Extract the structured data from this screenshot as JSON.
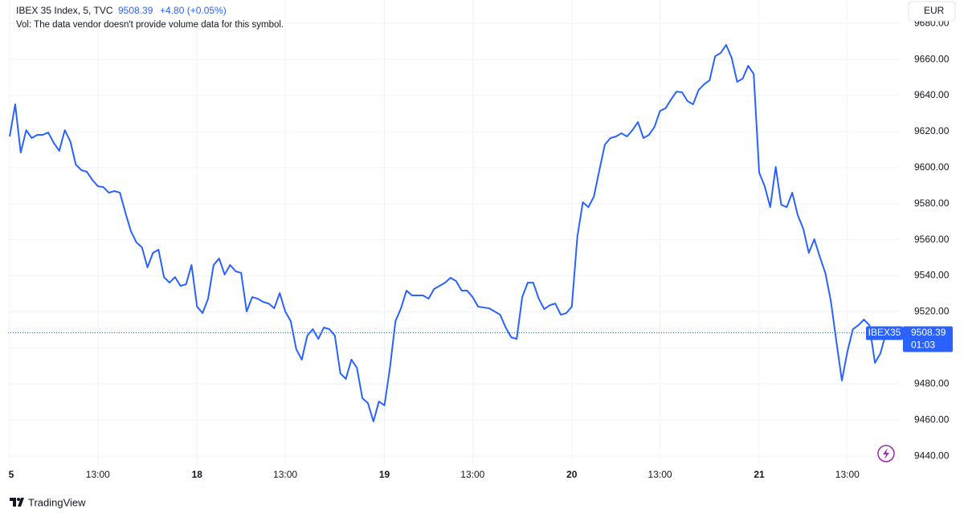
{
  "chart_data": {
    "type": "line",
    "title": "IBEX 35 Index, 5, TVC",
    "last_price": 9508.39,
    "change": "+4.80 (+0.05%)",
    "annotation": "Vol: The data vendor doesn't provide volume data for this symbol.",
    "currency": "EUR",
    "countdown": "01:03",
    "brand": "TradingView",
    "grid": true,
    "x": [
      0,
      3,
      6,
      9,
      12,
      15,
      18,
      21,
      24,
      27,
      30,
      33,
      36,
      39,
      42,
      45,
      48,
      51,
      54,
      57,
      60,
      63,
      66,
      69,
      72,
      75,
      78,
      81,
      84,
      87,
      90,
      93,
      96,
      99,
      102,
      105,
      108,
      111,
      114,
      117,
      120,
      123,
      126,
      129,
      132,
      135,
      138,
      141,
      144,
      147,
      150,
      153,
      156,
      159,
      162,
      165,
      168,
      171,
      174,
      177,
      180,
      183,
      186,
      189,
      192,
      195,
      198,
      201,
      204,
      207,
      210,
      213,
      216,
      219,
      222,
      225,
      228,
      231,
      234,
      237,
      240,
      243,
      246,
      249,
      252,
      255,
      258,
      261,
      264,
      267,
      270,
      273,
      276,
      279,
      282,
      285,
      288,
      291,
      294,
      297,
      300,
      303,
      306,
      309,
      312,
      315,
      318,
      321,
      324,
      327,
      330,
      333,
      336,
      339,
      342,
      345,
      348,
      351,
      354,
      357,
      360,
      363,
      366,
      369,
      372,
      375,
      378,
      381,
      384,
      387,
      390,
      393,
      396,
      399,
      402,
      405,
      408,
      411,
      414,
      417,
      420,
      423,
      426,
      429,
      432,
      435,
      438,
      441,
      444,
      447,
      450,
      453,
      456,
      459,
      462,
      465,
      468,
      471,
      474,
      477
    ],
    "series": [
      {
        "name": "IBEX35",
        "color": "#2962ff",
        "values": [
          9617.3,
          9635.1,
          9608.4,
          9620.8,
          9616.4,
          9618.2,
          9618.2,
          9619.5,
          9613.7,
          9609.3,
          9620.8,
          9614.6,
          9601.7,
          9598.6,
          9597.7,
          9593.2,
          9589.7,
          9589.2,
          9586.1,
          9587.0,
          9586.1,
          9575.0,
          9564.7,
          9558.5,
          9555.8,
          9544.7,
          9552.7,
          9554.5,
          9539.3,
          9536.2,
          9539.3,
          9534.4,
          9535.3,
          9546.0,
          9522.9,
          9519.3,
          9527.3,
          9546.0,
          9549.6,
          9540.7,
          9546.0,
          9542.5,
          9541.6,
          9520.2,
          9528.2,
          9527.3,
          9525.5,
          9524.6,
          9522.0,
          9530.4,
          9520.2,
          9514.8,
          9499.3,
          9493.5,
          9506.8,
          9510.4,
          9505.0,
          9511.3,
          9510.4,
          9506.8,
          9485.9,
          9482.8,
          9493.5,
          9489.0,
          9472.1,
          9469.4,
          9459.2,
          9470.3,
          9468.1,
          9489.0,
          9514.8,
          9522.0,
          9531.8,
          9529.1,
          9529.1,
          9529.1,
          9527.3,
          9532.7,
          9534.4,
          9536.2,
          9538.9,
          9537.1,
          9531.8,
          9531.8,
          9528.2,
          9522.9,
          9522.4,
          9522.0,
          9520.2,
          9518.4,
          9511.3,
          9505.9,
          9505.0,
          9528.2,
          9536.2,
          9536.2,
          9527.3,
          9521.5,
          9523.7,
          9524.6,
          9518.4,
          9519.3,
          9522.9,
          9561.6,
          9580.8,
          9578.1,
          9583.9,
          9598.6,
          9612.8,
          9616.4,
          9617.3,
          9619.1,
          9617.3,
          9620.8,
          9625.3,
          9616.4,
          9618.2,
          9622.6,
          9631.5,
          9632.9,
          9637.8,
          9642.2,
          9641.8,
          9636.9,
          9635.1,
          9643.1,
          9646.2,
          9648.5,
          9661.8,
          9663.6,
          9668.1,
          9660.9,
          9647.6,
          9649.4,
          9656.5,
          9652.0,
          9597.2,
          9589.7,
          9578.1,
          9600.4,
          9579.4,
          9578.1,
          9586.1,
          9573.6,
          9566.1,
          9552.7,
          9560.3,
          9550.5,
          9541.6,
          9526.0,
          9503.7,
          9481.9,
          9497.9,
          9510.4,
          9512.6,
          9515.7,
          9512.6,
          9491.7,
          9497.0,
          9508.39
        ]
      }
    ],
    "xlim": [
      -0.9,
      484.5
    ],
    "xticks": [
      {
        "value": 0,
        "label": "5"
      },
      {
        "value": 48,
        "label": "13:00"
      },
      {
        "value": 102,
        "label": "18"
      },
      {
        "value": 150,
        "label": "13:00"
      },
      {
        "value": 204,
        "label": "19"
      },
      {
        "value": 252,
        "label": "13:00"
      },
      {
        "value": 306,
        "label": "20"
      },
      {
        "value": 354,
        "label": "13:00"
      },
      {
        "value": 408,
        "label": "21"
      },
      {
        "value": 456,
        "label": "13:00"
      }
    ],
    "ylim": [
      9434.7,
      9693.0
    ],
    "yticks": [
      {
        "value": 9440,
        "label": "9440.00"
      },
      {
        "value": 9460,
        "label": "9460.00"
      },
      {
        "value": 9480,
        "label": "9480.00"
      },
      {
        "value": 9500,
        "label": "9500.00"
      },
      {
        "value": 9520,
        "label": "9520.00"
      },
      {
        "value": 9540,
        "label": "9540.00"
      },
      {
        "value": 9560,
        "label": "9560.00"
      },
      {
        "value": 9580,
        "label": "9580.00"
      },
      {
        "value": 9600,
        "label": "9600.00"
      },
      {
        "value": 9620,
        "label": "9620.00"
      },
      {
        "value": 9640,
        "label": "9640.00"
      },
      {
        "value": 9660,
        "label": "9660.00"
      },
      {
        "value": 9680,
        "label": "9680.00"
      }
    ]
  }
}
